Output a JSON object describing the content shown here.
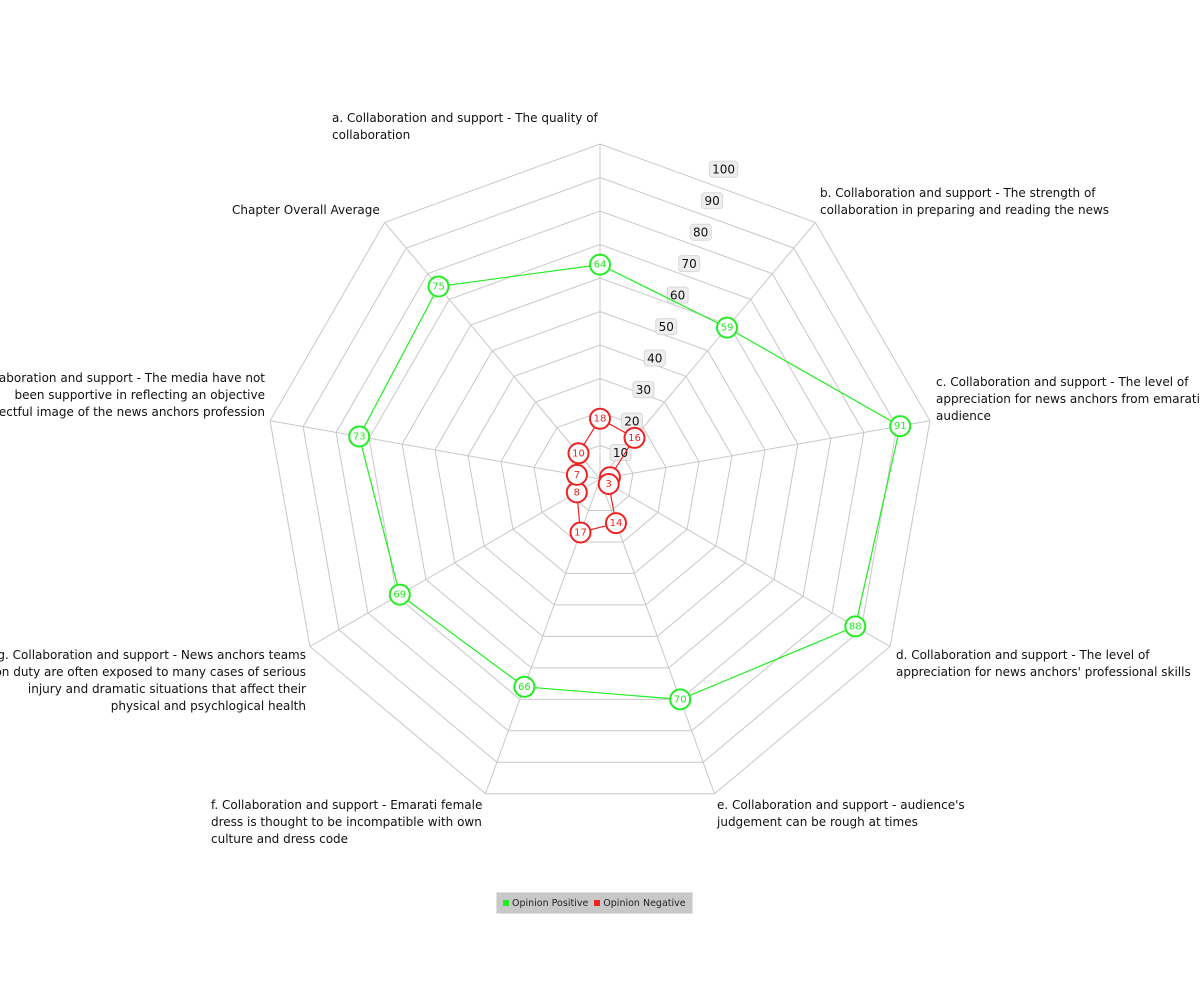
{
  "chart_data": {
    "type": "radar",
    "axes": [
      "a. Collaboration and support - The quality of collaboration",
      "b. Collaboration and support - The strength of collaboration in preparing and reading the news",
      "c. Collaboration and support - The level of appreciation for news anchors from emarati audience",
      "d. Collaboration and support - The level of appreciation for news anchors' professional skills",
      "e. Collaboration and support - audience's judgement can be rough at times",
      "f. Collaboration and support - Emarati female dress is thought to be incompatible with own culture and dress code",
      "g. Collaboration and support - News anchors teams on duty are often exposed to many cases of serious injury and dramatic situations that affect their physical and psychlogical health",
      "h. Collaboration and support - The media have not been supportive in reflecting an objective and respectful image of the news anchors profession",
      "Chapter Overall Average"
    ],
    "axis_label_lines": [
      [
        "a. Collaboration and support - The quality of",
        "collaboration"
      ],
      [
        "b. Collaboration and support - The strength of",
        "collaboration in preparing and reading the news"
      ],
      [
        "c. Collaboration and support - The level of",
        "appreciation for news anchors from emarati",
        "audience"
      ],
      [
        "d. Collaboration and support - The level of",
        "appreciation for news anchors' professional skills"
      ],
      [
        "e. Collaboration and support - audience's",
        "judgement can be rough at times"
      ],
      [
        "f. Collaboration and support - Emarati female",
        "dress is thought to be incompatible with own",
        "culture and dress code"
      ],
      [
        "g. Collaboration and support - News anchors teams",
        "on duty are often exposed to many cases of serious",
        "injury and dramatic situations that affect their",
        "physical and psychlogical health"
      ],
      [
        "h. Collaboration and support - The media have not",
        "been supportive in reflecting an objective",
        "and respectful image of the news anchors profession"
      ],
      [
        "Chapter Overall Average"
      ]
    ],
    "rlim": [
      0,
      100
    ],
    "ticks": [
      10,
      20,
      30,
      40,
      50,
      60,
      70,
      80,
      90,
      100
    ],
    "series": [
      {
        "name": "Opinion Positive",
        "color": "#22ee22",
        "values": [
          64,
          59,
          91,
          88,
          70,
          66,
          69,
          73,
          75
        ]
      },
      {
        "name": "Opinion Negative",
        "color": "#ee2222",
        "values": [
          18,
          16,
          3,
          3,
          14,
          17,
          8,
          7,
          10
        ]
      }
    ],
    "legend_position": "bottom",
    "grid": true
  }
}
